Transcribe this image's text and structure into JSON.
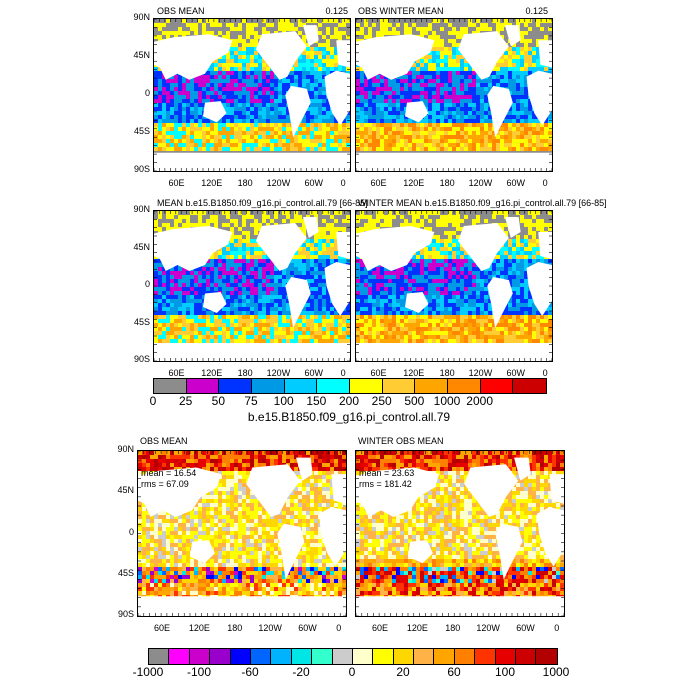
{
  "panels": [
    {
      "title": "OBS MEAN",
      "corner": "0.125",
      "scheme": "top",
      "stats": null
    },
    {
      "title": "OBS WINTER MEAN",
      "corner": "0.125",
      "scheme": "top",
      "stats": null
    },
    {
      "title": "MEAN b.e15.B1850.f09_g16.pi_control.all.79 [66-85]",
      "corner": "",
      "scheme": "top",
      "stats": null
    },
    {
      "title": "WINTER MEAN b.e15.B1850.f09_g16.pi_control.all.79 [66-85]",
      "corner": "",
      "scheme": "top",
      "stats": null
    },
    {
      "title": "OBS MEAN",
      "corner": "",
      "scheme": "diff",
      "stats": {
        "mean": "mean = 16.54",
        "rms": "rms = 67.09"
      }
    },
    {
      "title": "WINTER OBS MEAN",
      "corner": "",
      "scheme": "diff",
      "stats": {
        "mean": "mean = 23.63",
        "rms": "rms = 181.42"
      }
    }
  ],
  "lat_labels": [
    "90N",
    "45N",
    "0",
    "45S",
    "90S"
  ],
  "lon_labels": [
    "60E",
    "120E",
    "180",
    "120W",
    "60W",
    "0"
  ],
  "colorbar_top": {
    "colors": [
      "#8c8c8c",
      "#cc00cc",
      "#0033ff",
      "#0099e6",
      "#00ccff",
      "#00ffff",
      "#ffff00",
      "#ffcc33",
      "#ffa500",
      "#ff8800",
      "#ff0000",
      "#cc0000"
    ],
    "labels": [
      "0",
      "25",
      "50",
      "75",
      "100",
      "150",
      "200",
      "250",
      "500",
      "1000",
      "2000"
    ],
    "title": "b.e15.B1850.f09_g16.pi_control.all.79"
  },
  "colorbar_bottom": {
    "colors": [
      "#8c8c8c",
      "#ff00ff",
      "#cc00cc",
      "#9900cc",
      "#0000ff",
      "#0066ff",
      "#00b3ff",
      "#00e6e6",
      "#33ffcc",
      "#cccccc",
      "#ffffcc",
      "#ffff00",
      "#ffd700",
      "#ffb347",
      "#ffa500",
      "#ff7f00",
      "#ff3300",
      "#e60000",
      "#cc0000",
      "#b30000"
    ],
    "labels": [
      "-1000",
      "-100",
      "-60",
      "-20",
      "0",
      "20",
      "60",
      "100",
      "1000"
    ]
  }
}
